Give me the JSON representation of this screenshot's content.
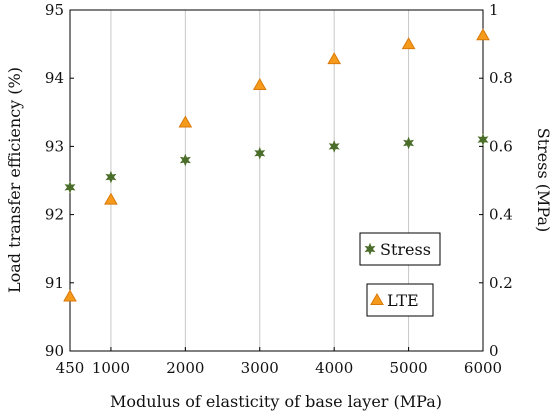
{
  "chart_data": {
    "type": "scatter",
    "title": "",
    "xlabel": "Modulus of elasticity of base layer (MPa)",
    "ylabel_left": "Load transfer efficiency (%)",
    "ylabel_right": "Stress (MPa)",
    "x_ticks": [
      "450",
      "1000",
      "2000",
      "3000",
      "4000",
      "5000",
      "6000"
    ],
    "x_tick_values": [
      450,
      1000,
      2000,
      3000,
      4000,
      5000,
      6000
    ],
    "y_left_ticks": [
      "90",
      "91",
      "92",
      "93",
      "94",
      "95"
    ],
    "y_left_tick_values": [
      90,
      91,
      92,
      93,
      94,
      95
    ],
    "y_right_ticks": [
      "0",
      "0.2",
      "0.4",
      "0.6",
      "0.8",
      "1"
    ],
    "y_right_tick_values": [
      0,
      0.2,
      0.4,
      0.6,
      0.8,
      1
    ],
    "xlim": [
      450,
      6000
    ],
    "ylim_left": [
      90,
      95
    ],
    "ylim_right": [
      0,
      1
    ],
    "grid": "vertical",
    "legend_placement": "lower-right",
    "series": [
      {
        "name": "Stress",
        "axis": "right",
        "marker": "star",
        "color": "#4a6e2a",
        "x": [
          450,
          1000,
          2000,
          3000,
          4000,
          5000,
          6000
        ],
        "y": [
          0.48,
          0.51,
          0.56,
          0.58,
          0.6,
          0.61,
          0.62
        ]
      },
      {
        "name": "LTE",
        "axis": "left",
        "marker": "triangle",
        "color": "#f59a1a",
        "stroke": "#d9790a",
        "x": [
          450,
          1000,
          2000,
          3000,
          4000,
          5000,
          6000
        ],
        "y": [
          90.8,
          92.22,
          93.35,
          93.9,
          94.28,
          94.5,
          94.63
        ]
      }
    ]
  }
}
